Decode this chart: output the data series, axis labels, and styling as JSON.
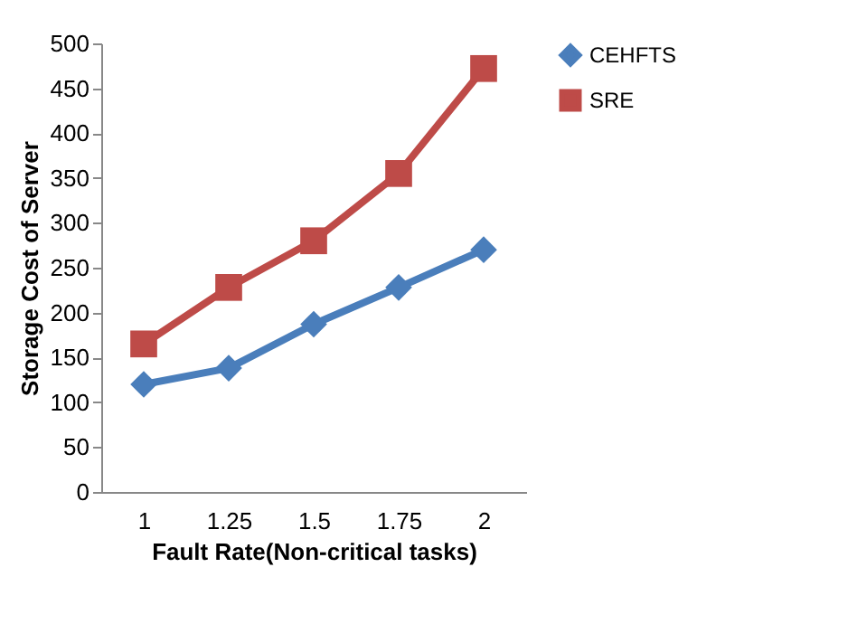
{
  "chart_data": {
    "type": "line",
    "xlabel": "Fault Rate(Non-critical tasks)",
    "ylabel": "Storage Cost of Server",
    "categories": [
      "1",
      "1.25",
      "1.5",
      "1.75",
      "2"
    ],
    "ylim": [
      0,
      500
    ],
    "yticks": [
      0,
      50,
      100,
      150,
      200,
      250,
      300,
      350,
      400,
      450,
      500
    ],
    "grid": false,
    "legend": "right",
    "line_style": "solid",
    "series": [
      {
        "name": "CEHFTS",
        "color": "#4a7ebb",
        "marker": "diamond",
        "values": [
          120,
          138,
          187,
          228,
          270
        ]
      },
      {
        "name": "SRE",
        "color": "#be4b48",
        "marker": "square",
        "values": [
          165,
          228,
          280,
          355,
          472
        ]
      }
    ]
  }
}
